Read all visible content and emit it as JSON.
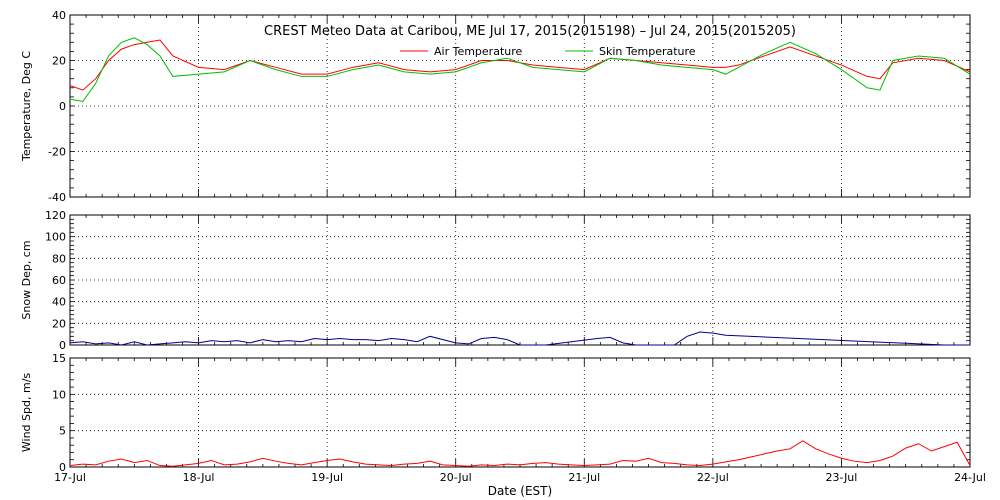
{
  "chart_data": {
    "type": "line",
    "title": "CREST Meteo Data at Caribou, ME   Jul 17, 2015(2015198) – Jul 24, 2015(2015205)",
    "xlabel": "Date (EST)",
    "x_ticks": [
      "17-Jul",
      "18-Jul",
      "19-Jul",
      "20-Jul",
      "21-Jul",
      "22-Jul",
      "23-Jul",
      "24-Jul"
    ],
    "x_range_days": [
      0,
      7
    ],
    "grid": "dotted",
    "panels": [
      {
        "ylabel": "Temperature, Deg C",
        "ylim": [
          -40,
          40
        ],
        "y_ticks": [
          40,
          20,
          0,
          -20,
          -40
        ],
        "legend": "top-center",
        "series": [
          {
            "name": "Air Temperature",
            "color": "#ff0000",
            "x": [
              0,
              0.1,
              0.2,
              0.3,
              0.4,
              0.5,
              0.6,
              0.7,
              0.8,
              1,
              1.2,
              1.4,
              1.6,
              1.8,
              2,
              2.2,
              2.4,
              2.6,
              2.8,
              3,
              3.2,
              3.4,
              3.6,
              3.8,
              4,
              4.2,
              4.4,
              4.6,
              4.8,
              5,
              5.1,
              5.2,
              5.4,
              5.6,
              5.8,
              6,
              6.2,
              6.3,
              6.4,
              6.6,
              6.8,
              7
            ],
            "y": [
              9,
              7,
              12,
              20,
              25,
              27,
              28,
              29,
              22,
              17,
              16,
              20,
              17,
              14,
              14,
              17,
              19,
              16,
              15,
              16,
              20,
              20,
              18,
              17,
              16,
              21,
              20,
              19,
              18,
              17,
              17,
              18,
              22,
              26,
              22,
              18,
              13,
              12,
              19,
              21,
              20,
              15
            ]
          },
          {
            "name": "Skin Temperature",
            "color": "#00c000",
            "x": [
              0,
              0.1,
              0.2,
              0.3,
              0.4,
              0.5,
              0.6,
              0.7,
              0.8,
              1,
              1.2,
              1.4,
              1.6,
              1.8,
              2,
              2.2,
              2.4,
              2.6,
              2.8,
              3,
              3.2,
              3.4,
              3.6,
              3.8,
              4,
              4.2,
              4.4,
              4.6,
              4.8,
              5,
              5.1,
              5.2,
              5.4,
              5.6,
              5.8,
              6,
              6.2,
              6.3,
              6.4,
              6.6,
              6.8,
              7
            ],
            "y": [
              3,
              2,
              10,
              22,
              28,
              30,
              27,
              22,
              13,
              14,
              15,
              20,
              16,
              13,
              13,
              16,
              18,
              15,
              14,
              15,
              19,
              21,
              17,
              16,
              15,
              21,
              20,
              18,
              17,
              16,
              14,
              17,
              23,
              28,
              23,
              16,
              8,
              7,
              20,
              22,
              21,
              14
            ]
          }
        ]
      },
      {
        "ylabel": "Snow Dep, cm",
        "ylim": [
          0,
          120
        ],
        "y_ticks": [
          120,
          100,
          80,
          60,
          40,
          20,
          0
        ],
        "series": [
          {
            "name": "",
            "color": "#00008b",
            "x": [
              0,
              0.1,
              0.2,
              0.3,
              0.4,
              0.5,
              0.6,
              0.7,
              0.8,
              0.9,
              1,
              1.1,
              1.2,
              1.3,
              1.4,
              1.5,
              1.6,
              1.7,
              1.8,
              1.9,
              2,
              2.1,
              2.2,
              2.3,
              2.4,
              2.5,
              2.6,
              2.7,
              2.8,
              3,
              3.1,
              3.2,
              3.3,
              3.4,
              3.5,
              3.6,
              3.7,
              4.1,
              4.2,
              4.3,
              4.4,
              4.5,
              4.6,
              4.7,
              4.8,
              4.9,
              5,
              5.1,
              6.8,
              6.9,
              7
            ],
            "y": [
              2,
              3,
              1,
              2,
              0,
              3,
              0,
              1,
              2,
              3,
              2,
              4,
              3,
              4,
              2,
              5,
              3,
              4,
              3,
              6,
              5,
              6,
              5,
              5,
              4,
              6,
              5,
              3,
              8,
              2,
              1,
              6,
              7,
              5,
              0,
              0,
              0,
              6,
              7,
              2,
              0,
              0,
              0,
              0,
              8,
              12,
              11,
              9,
              0,
              0,
              0
            ]
          }
        ]
      },
      {
        "ylabel": "Wind Spd, m/s",
        "ylim": [
          0,
          15
        ],
        "y_ticks": [
          15,
          10,
          5,
          0
        ],
        "series": [
          {
            "name": "",
            "color": "#ff0000",
            "x": [
              0,
              0.1,
              0.2,
              0.3,
              0.4,
              0.5,
              0.6,
              0.7,
              0.8,
              0.9,
              1,
              1.1,
              1.2,
              1.3,
              1.4,
              1.5,
              1.6,
              1.7,
              1.8,
              1.9,
              2,
              2.1,
              2.2,
              2.3,
              2.4,
              2.5,
              2.6,
              2.7,
              2.8,
              2.9,
              3,
              3.1,
              3.2,
              3.3,
              3.4,
              3.5,
              3.6,
              3.7,
              3.8,
              3.9,
              4,
              4.1,
              4.2,
              4.3,
              4.4,
              4.5,
              4.6,
              4.7,
              4.8,
              4.9,
              5,
              5.1,
              5.2,
              5.3,
              5.4,
              5.5,
              5.6,
              5.7,
              5.8,
              5.9,
              6,
              6.1,
              6.2,
              6.3,
              6.4,
              6.5,
              6.6,
              6.7,
              6.8,
              6.9,
              7
            ],
            "y": [
              0.2,
              0.4,
              0.3,
              0.8,
              1.1,
              0.6,
              0.9,
              0.2,
              0.1,
              0.3,
              0.5,
              0.9,
              0.3,
              0.4,
              0.7,
              1.2,
              0.8,
              0.5,
              0.3,
              0.6,
              0.9,
              1.1,
              0.7,
              0.4,
              0.3,
              0.2,
              0.4,
              0.5,
              0.8,
              0.3,
              0.2,
              0.1,
              0.3,
              0.2,
              0.4,
              0.3,
              0.5,
              0.6,
              0.4,
              0.3,
              0.2,
              0.3,
              0.4,
              0.9,
              0.8,
              1.2,
              0.6,
              0.5,
              0.3,
              0.2,
              0.4,
              0.7,
              1,
              1.4,
              1.8,
              2.2,
              2.5,
              3.6,
              2.5,
              1.8,
              1.2,
              0.8,
              0.6,
              0.9,
              1.5,
              2.6,
              3.2,
              2.2,
              2.8,
              3.4,
              0.2
            ]
          }
        ]
      }
    ]
  }
}
